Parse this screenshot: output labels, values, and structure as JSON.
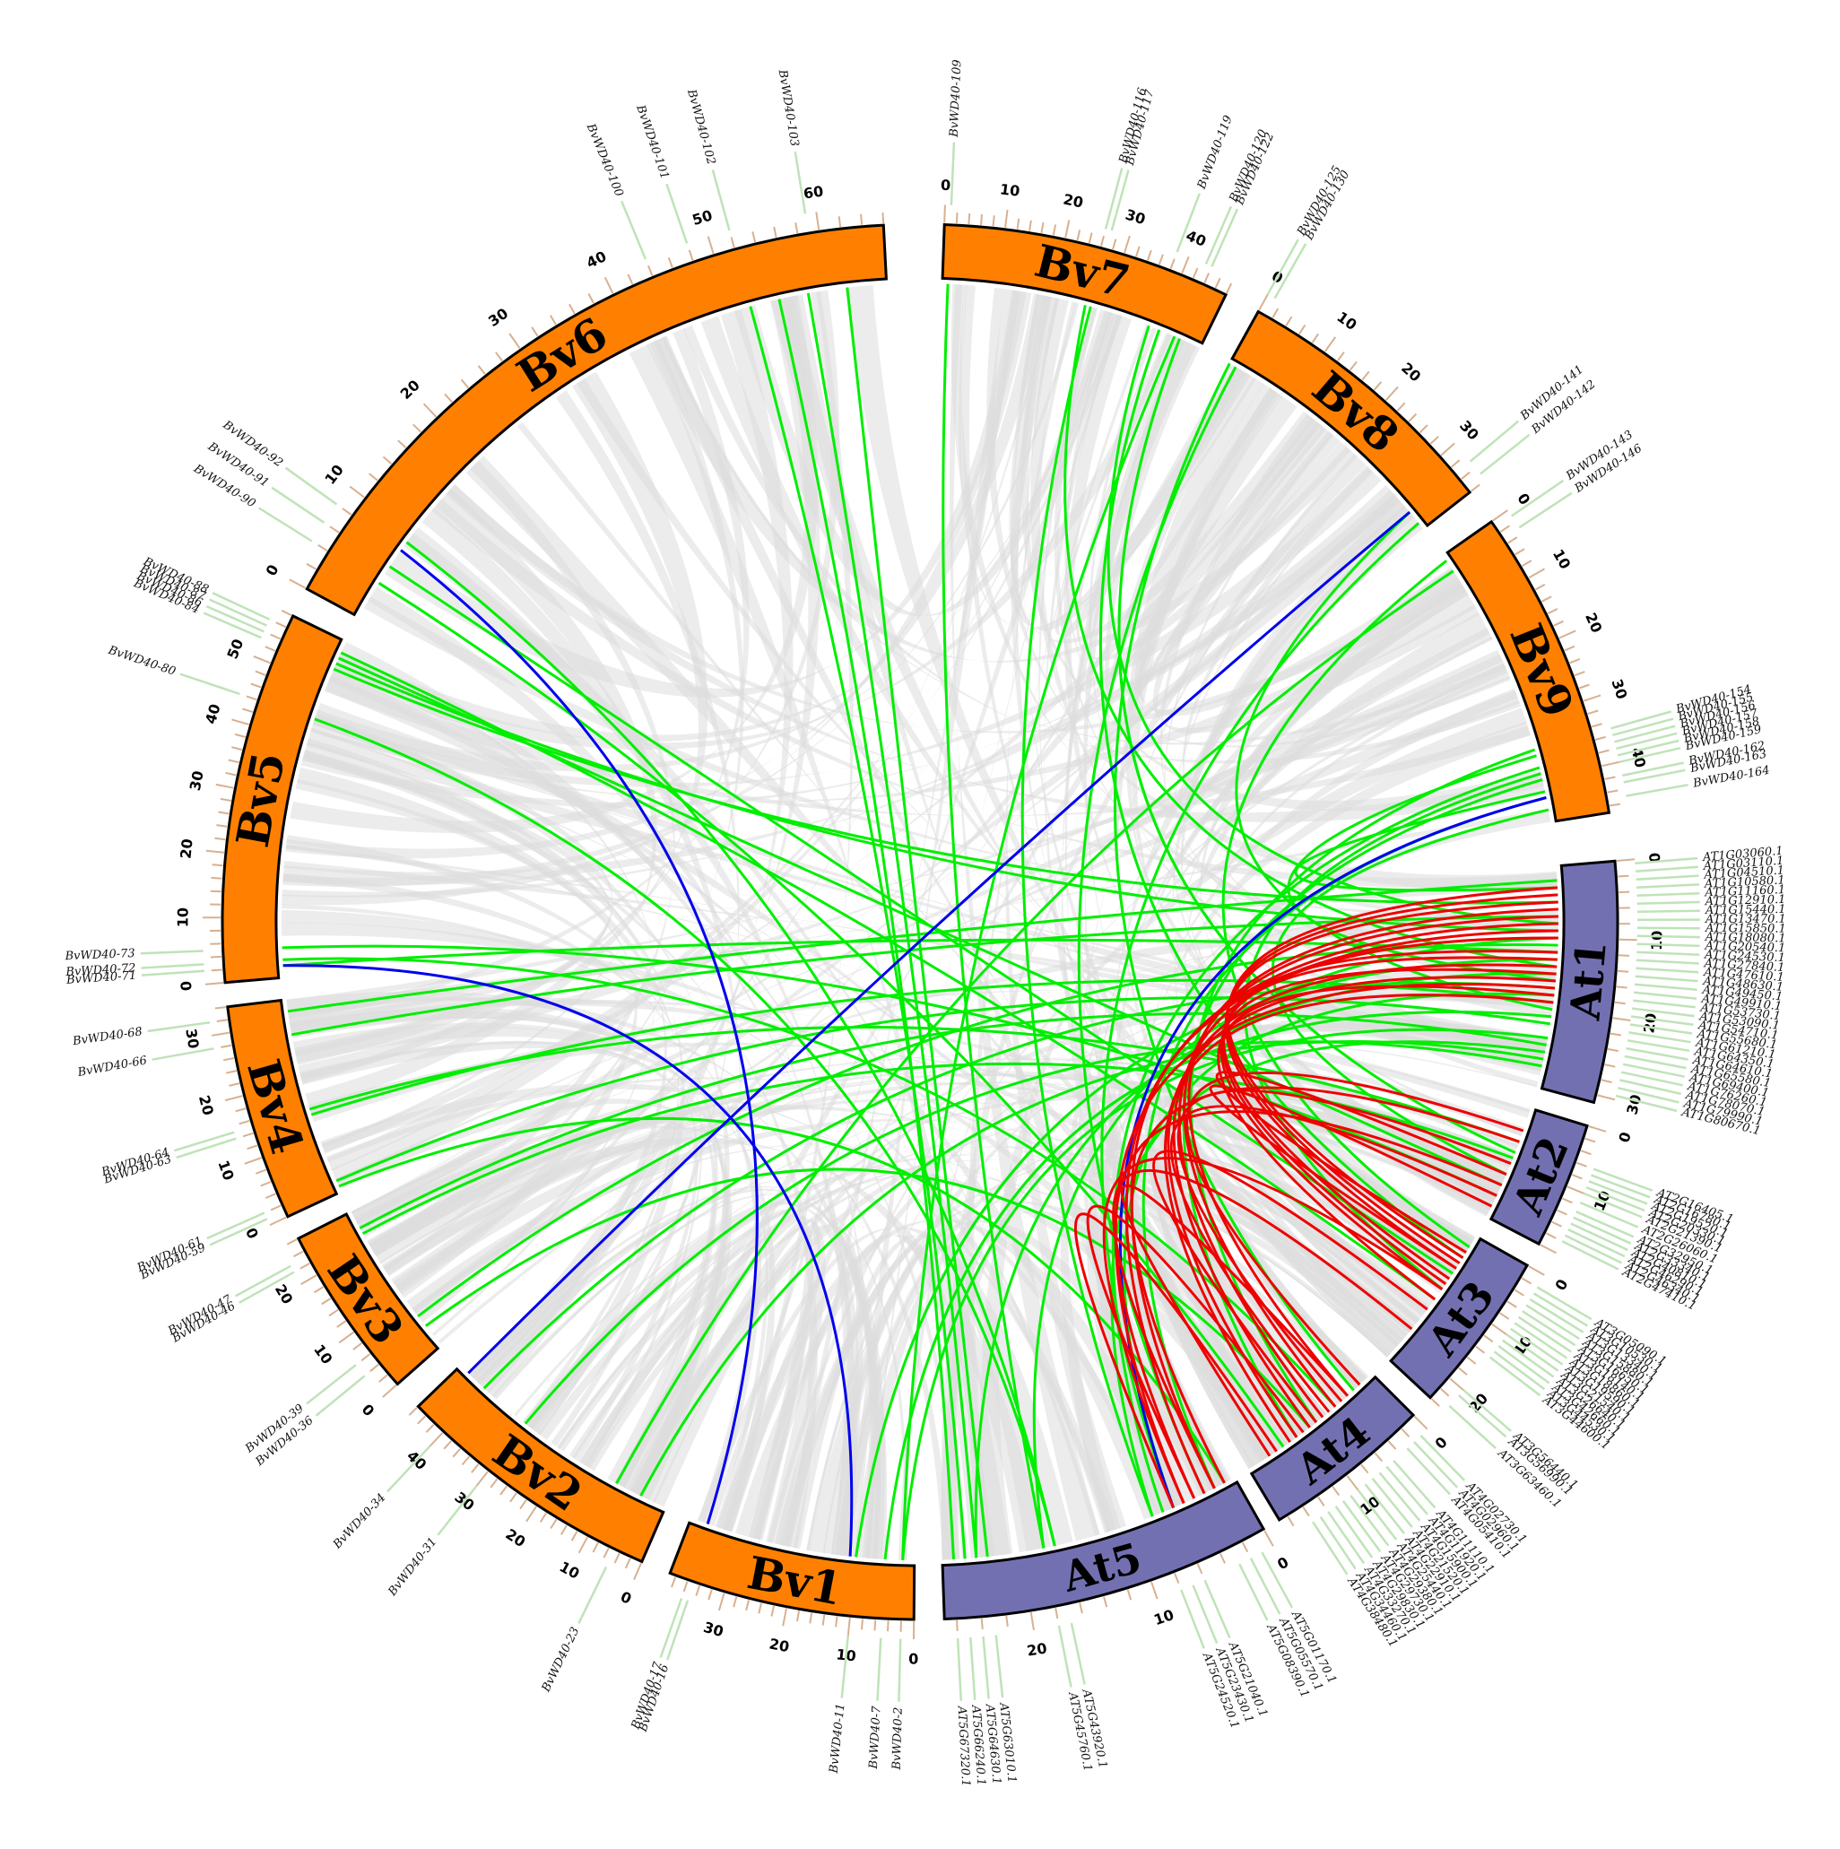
{
  "colors": {
    "bv_chromosome": "#ff8000",
    "at_chromosome": "#7370b2",
    "outline": "#000000",
    "background_synteny": "#dcdcdc",
    "bv_bv_link": "#0000ee",
    "bv_at_link": "#00ee00",
    "at_at_link": "#ee0000",
    "gene_leader": "#bfe3b8",
    "tick": "#d8b090"
  },
  "chromosomes": [
    {
      "id": "Bv1",
      "label": "Bv1",
      "ticks": [
        "0",
        "10",
        "20",
        "30"
      ]
    },
    {
      "id": "Bv2",
      "label": "Bv2",
      "ticks": [
        "0",
        "10",
        "20",
        "30",
        "40"
      ]
    },
    {
      "id": "Bv3",
      "label": "Bv3",
      "ticks": [
        "0",
        "10",
        "20"
      ]
    },
    {
      "id": "Bv4",
      "label": "Bv4",
      "ticks": [
        "0",
        "10",
        "20",
        "30"
      ]
    },
    {
      "id": "Bv5",
      "label": "Bv5",
      "ticks": [
        "0",
        "10",
        "20",
        "30",
        "40",
        "50"
      ]
    },
    {
      "id": "Bv6",
      "label": "Bv6",
      "ticks": [
        "0",
        "10",
        "20",
        "30",
        "40",
        "50",
        "60"
      ]
    },
    {
      "id": "Bv7",
      "label": "Bv7",
      "ticks": [
        "0",
        "10",
        "20",
        "30",
        "40"
      ]
    },
    {
      "id": "Bv8",
      "label": "Bv8",
      "ticks": [
        "0",
        "10",
        "20",
        "30"
      ]
    },
    {
      "id": "Bv9",
      "label": "Bv9",
      "ticks": [
        "0",
        "10",
        "20",
        "30",
        "40"
      ]
    },
    {
      "id": "At1",
      "label": "At1",
      "ticks": [
        "0",
        "10",
        "20",
        "30"
      ]
    },
    {
      "id": "At2",
      "label": "At2",
      "ticks": [
        "0",
        "10"
      ]
    },
    {
      "id": "At3",
      "label": "At3",
      "ticks": [
        "0",
        "10",
        "20"
      ]
    },
    {
      "id": "At4",
      "label": "At4",
      "ticks": [
        "0",
        "10"
      ]
    },
    {
      "id": "At5",
      "label": "At5",
      "ticks": [
        "0",
        "10",
        "20"
      ]
    }
  ],
  "genes": [
    {
      "chr": "Bv1",
      "pos": 2,
      "label": "BvWD40-2"
    },
    {
      "chr": "Bv1",
      "pos": 5,
      "label": "BvWD40-7"
    },
    {
      "chr": "Bv1",
      "pos": 10,
      "label": "BvWD40-11"
    },
    {
      "chr": "Bv1",
      "pos": 35,
      "label": "BvWD40-16"
    },
    {
      "chr": "Bv1",
      "pos": 36,
      "label": "BvWD40-17"
    },
    {
      "chr": "Bv2",
      "pos": 5,
      "label": "BvWD40-23"
    },
    {
      "chr": "Bv2",
      "pos": 30,
      "label": "BvWD40-31"
    },
    {
      "chr": "Bv2",
      "pos": 40,
      "label": "BvWD40-34"
    },
    {
      "chr": "Bv3",
      "pos": 4,
      "label": "BvWD40-36"
    },
    {
      "chr": "Bv3",
      "pos": 6,
      "label": "BvWD40-39"
    },
    {
      "chr": "Bv3",
      "pos": 22,
      "label": "BvWD40-46"
    },
    {
      "chr": "Bv3",
      "pos": 23,
      "label": "BvWD40-47"
    },
    {
      "chr": "Bv4",
      "pos": 1,
      "label": "BvWD40-59"
    },
    {
      "chr": "Bv4",
      "pos": 2,
      "label": "BvWD40-61"
    },
    {
      "chr": "Bv4",
      "pos": 14,
      "label": "BvWD40-63"
    },
    {
      "chr": "Bv4",
      "pos": 15,
      "label": "BvWD40-64"
    },
    {
      "chr": "Bv4",
      "pos": 28,
      "label": "BvWD40-66"
    },
    {
      "chr": "Bv4",
      "pos": 32,
      "label": "BvWD40-68"
    },
    {
      "chr": "Bv5",
      "pos": 2,
      "label": "BvWD40-71"
    },
    {
      "chr": "Bv5",
      "pos": 3,
      "label": "BvWD40-72"
    },
    {
      "chr": "Bv5",
      "pos": 5,
      "label": "BvWD40-73"
    },
    {
      "chr": "Bv5",
      "pos": 44,
      "label": "BvWD40-80"
    },
    {
      "chr": "Bv5",
      "pos": 53,
      "label": "BvWD40-84"
    },
    {
      "chr": "Bv5",
      "pos": 54,
      "label": "BvWD40-86"
    },
    {
      "chr": "Bv5",
      "pos": 55,
      "label": "BvWD40-87"
    },
    {
      "chr": "Bv5",
      "pos": 56,
      "label": "BvWD40-88"
    },
    {
      "chr": "Bv6",
      "pos": 4,
      "label": "BvWD40-90"
    },
    {
      "chr": "Bv6",
      "pos": 6,
      "label": "BvWD40-91"
    },
    {
      "chr": "Bv6",
      "pos": 8,
      "label": "BvWD40-92"
    },
    {
      "chr": "Bv6",
      "pos": 44,
      "label": "BvWD40-100"
    },
    {
      "chr": "Bv6",
      "pos": 48,
      "label": "BvWD40-101"
    },
    {
      "chr": "Bv6",
      "pos": 52,
      "label": "BvWD40-102"
    },
    {
      "chr": "Bv6",
      "pos": 59,
      "label": "BvWD40-103"
    },
    {
      "chr": "Bv7",
      "pos": 1,
      "label": "BvWD40-109"
    },
    {
      "chr": "Bv7",
      "pos": 26,
      "label": "BvWD40-116"
    },
    {
      "chr": "Bv7",
      "pos": 27,
      "label": "BvWD40-117"
    },
    {
      "chr": "Bv7",
      "pos": 38,
      "label": "BvWD40-119"
    },
    {
      "chr": "Bv7",
      "pos": 43,
      "label": "BvWD40-120"
    },
    {
      "chr": "Bv7",
      "pos": 44,
      "label": "BvWD40-122"
    },
    {
      "chr": "Bv8",
      "pos": 0,
      "label": "BvWD40-125"
    },
    {
      "chr": "Bv8",
      "pos": 1,
      "label": "BvWD40-130"
    },
    {
      "chr": "Bv8",
      "pos": 33,
      "label": "BvWD40-141"
    },
    {
      "chr": "Bv8",
      "pos": 35,
      "label": "BvWD40-142"
    },
    {
      "chr": "Bv9",
      "pos": 1,
      "label": "BvWD40-143"
    },
    {
      "chr": "Bv9",
      "pos": 3,
      "label": "BvWD40-146"
    },
    {
      "chr": "Bv9",
      "pos": 35,
      "label": "BvWD40-154"
    },
    {
      "chr": "Bv9",
      "pos": 36,
      "label": "BvWD40-155"
    },
    {
      "chr": "Bv9",
      "pos": 37,
      "label": "BvWD40-156"
    },
    {
      "chr": "Bv9",
      "pos": 38,
      "label": "BvWD40-157"
    },
    {
      "chr": "Bv9",
      "pos": 39,
      "label": "BvWD40-158"
    },
    {
      "chr": "Bv9",
      "pos": 40,
      "label": "BvWD40-159"
    },
    {
      "chr": "Bv9",
      "pos": 42,
      "label": "BvWD40-162"
    },
    {
      "chr": "Bv9",
      "pos": 43,
      "label": "BvWD40-163"
    },
    {
      "chr": "Bv9",
      "pos": 45,
      "label": "BvWD40-164"
    },
    {
      "chr": "At1",
      "pos": 0.5,
      "label": "AT1G03060.1"
    },
    {
      "chr": "At1",
      "pos": 1.5,
      "label": "AT1G03110.1"
    },
    {
      "chr": "At1",
      "pos": 2.5,
      "label": "AT1G04510.1"
    },
    {
      "chr": "At1",
      "pos": 3.5,
      "label": "AT1G10580.1"
    },
    {
      "chr": "At1",
      "pos": 4.5,
      "label": "AT1G11160.1"
    },
    {
      "chr": "At1",
      "pos": 5.5,
      "label": "AT1G12910.1"
    },
    {
      "chr": "At1",
      "pos": 6.5,
      "label": "AT1G15440.1"
    },
    {
      "chr": "At1",
      "pos": 7.5,
      "label": "AT1G13470.1"
    },
    {
      "chr": "At1",
      "pos": 8.5,
      "label": "AT1G15850.1"
    },
    {
      "chr": "At1",
      "pos": 9.5,
      "label": "AT1G18080.1"
    },
    {
      "chr": "At1",
      "pos": 10.5,
      "label": "AT1G20540.1"
    },
    {
      "chr": "At1",
      "pos": 11.5,
      "label": "AT1G24530.1"
    },
    {
      "chr": "At1",
      "pos": 12.5,
      "label": "AT1G27840.1"
    },
    {
      "chr": "At1",
      "pos": 13.5,
      "label": "AT1G47610.1"
    },
    {
      "chr": "At1",
      "pos": 14.5,
      "label": "AT1G48630.1"
    },
    {
      "chr": "At1",
      "pos": 15.5,
      "label": "AT1G49450.1"
    },
    {
      "chr": "At1",
      "pos": 16.5,
      "label": "AT1G49910.1"
    },
    {
      "chr": "At1",
      "pos": 17.5,
      "label": "AT1G53730.1"
    },
    {
      "chr": "At1",
      "pos": 18.5,
      "label": "AT1G53090.1"
    },
    {
      "chr": "At1",
      "pos": 19.5,
      "label": "AT1G54710.1"
    },
    {
      "chr": "At1",
      "pos": 20.5,
      "label": "AT1G55680.1"
    },
    {
      "chr": "At1",
      "pos": 21.5,
      "label": "AT1G61210.1"
    },
    {
      "chr": "At1",
      "pos": 22.5,
      "label": "AT1G64350.1"
    },
    {
      "chr": "At1",
      "pos": 23.5,
      "label": "AT1G64610.1"
    },
    {
      "chr": "At1",
      "pos": 24.5,
      "label": "AT1G65580.1"
    },
    {
      "chr": "At1",
      "pos": 25.5,
      "label": "AT1G69400.1"
    },
    {
      "chr": "At1",
      "pos": 26.5,
      "label": "AT1G76260.1"
    },
    {
      "chr": "At1",
      "pos": 27.5,
      "label": "AT1G78070.1"
    },
    {
      "chr": "At1",
      "pos": 28.5,
      "label": "AT1G79990.1"
    },
    {
      "chr": "At1",
      "pos": 29.5,
      "label": "AT1G80670.1"
    },
    {
      "chr": "At2",
      "pos": 6,
      "label": "AT2G16405.1"
    },
    {
      "chr": "At2",
      "pos": 7,
      "label": "AT2G16780.1"
    },
    {
      "chr": "At2",
      "pos": 8,
      "label": "AT2G19520.1"
    },
    {
      "chr": "At2",
      "pos": 9,
      "label": "AT2G20330.1"
    },
    {
      "chr": "At2",
      "pos": 10,
      "label": "AT2G21390.1"
    },
    {
      "chr": "At2",
      "pos": 11.5,
      "label": "AT2G26060.1"
    },
    {
      "chr": "At2",
      "pos": 13,
      "label": "AT2G32950.1"
    },
    {
      "chr": "At2",
      "pos": 14,
      "label": "AT2G33340.1"
    },
    {
      "chr": "At2",
      "pos": 15,
      "label": "AT2G40810.1"
    },
    {
      "chr": "At2",
      "pos": 16,
      "label": "AT2G46290.1"
    },
    {
      "chr": "At2",
      "pos": 17,
      "label": "AT2G46340.1"
    },
    {
      "chr": "At2",
      "pos": 18,
      "label": "AT2G47410.1"
    },
    {
      "chr": "At3",
      "pos": 2,
      "label": "AT3G05090.1"
    },
    {
      "chr": "At3",
      "pos": 3,
      "label": "AT3G10530.1"
    },
    {
      "chr": "At3",
      "pos": 4,
      "label": "AT3G13340.1"
    },
    {
      "chr": "At3",
      "pos": 5,
      "label": "AT3G15880.1"
    },
    {
      "chr": "At3",
      "pos": 6,
      "label": "AT3G16650.1"
    },
    {
      "chr": "At3",
      "pos": 7,
      "label": "AT3G18140.1"
    },
    {
      "chr": "At3",
      "pos": 8,
      "label": "AT3G18860.1"
    },
    {
      "chr": "At3",
      "pos": 9,
      "label": "AT3G19590.1"
    },
    {
      "chr": "At3",
      "pos": 10,
      "label": "AT3G21540.1"
    },
    {
      "chr": "At3",
      "pos": 11,
      "label": "AT3G26640.1"
    },
    {
      "chr": "At3",
      "pos": 12,
      "label": "AT3G42660.1"
    },
    {
      "chr": "At3",
      "pos": 13,
      "label": "AT3G44530.1"
    },
    {
      "chr": "At3",
      "pos": 14,
      "label": "AT3G44600.1"
    },
    {
      "chr": "At3",
      "pos": 20,
      "label": "AT3G56440.1"
    },
    {
      "chr": "At3",
      "pos": 21,
      "label": "AT3G56990.1"
    },
    {
      "chr": "At3",
      "pos": 23,
      "label": "AT3G63460.1"
    },
    {
      "chr": "At4",
      "pos": 1,
      "label": "AT4G02730.1"
    },
    {
      "chr": "At4",
      "pos": 2,
      "label": "AT4G02960.1"
    },
    {
      "chr": "At4",
      "pos": 3,
      "label": "AT4G05410.1"
    },
    {
      "chr": "At4",
      "pos": 5,
      "label": "AT4G11110.1"
    },
    {
      "chr": "At4",
      "pos": 6,
      "label": "AT4G11920.1"
    },
    {
      "chr": "At4",
      "pos": 7,
      "label": "AT4G15900.1"
    },
    {
      "chr": "At4",
      "pos": 8,
      "label": "AT4G21520.1"
    },
    {
      "chr": "At4",
      "pos": 9,
      "label": "AT4G22910.1"
    },
    {
      "chr": "At4",
      "pos": 10,
      "label": "AT4G25440.1"
    },
    {
      "chr": "At4",
      "pos": 11,
      "label": "AT4G29380.1"
    },
    {
      "chr": "At4",
      "pos": 12,
      "label": "AT4G29730.1"
    },
    {
      "chr": "At4",
      "pos": 13,
      "label": "AT4G29830.1"
    },
    {
      "chr": "At4",
      "pos": 14,
      "label": "AT4G33270.1"
    },
    {
      "chr": "At4",
      "pos": 15,
      "label": "AT4G34460.1"
    },
    {
      "chr": "At4",
      "pos": 16,
      "label": "AT4G38480.1"
    },
    {
      "chr": "At5",
      "pos": 1,
      "label": "AT5G01170.1"
    },
    {
      "chr": "At5",
      "pos": 2,
      "label": "AT5G05570.1"
    },
    {
      "chr": "At5",
      "pos": 3,
      "label": "AT5G08390.1"
    },
    {
      "chr": "At5",
      "pos": 6,
      "label": "AT5G21040.1"
    },
    {
      "chr": "At5",
      "pos": 7,
      "label": "AT5G23430.1"
    },
    {
      "chr": "At5",
      "pos": 8,
      "label": "AT5G24520.1"
    },
    {
      "chr": "At5",
      "pos": 17,
      "label": "AT5G43920.1"
    },
    {
      "chr": "At5",
      "pos": 18,
      "label": "AT5G45760.1"
    },
    {
      "chr": "At5",
      "pos": 23,
      "label": "AT5G63010.1"
    },
    {
      "chr": "At5",
      "pos": 24,
      "label": "AT5G64630.1"
    },
    {
      "chr": "At5",
      "pos": 25,
      "label": "AT5G66240.1"
    },
    {
      "chr": "At5",
      "pos": 26,
      "label": "AT5G67320.1"
    }
  ]
}
